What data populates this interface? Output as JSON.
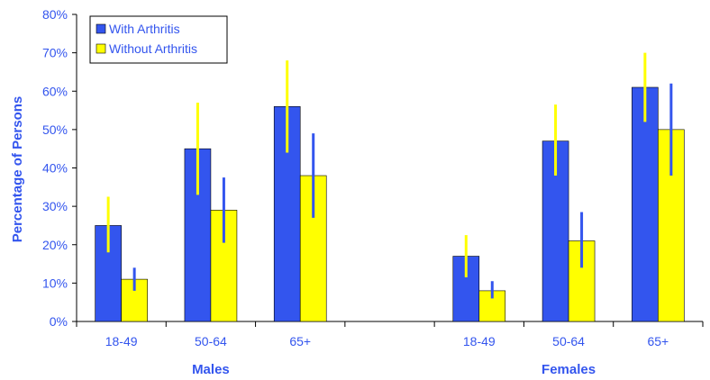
{
  "chart_data": {
    "type": "bar",
    "title": "",
    "ylabel": "Percentage of Persons",
    "ylim": [
      0,
      80
    ],
    "yticks": [
      "0%",
      "10%",
      "20%",
      "30%",
      "40%",
      "50%",
      "60%",
      "70%",
      "80%"
    ],
    "grid": false,
    "legend_position": "top-left",
    "groups": [
      {
        "label": "Males",
        "categories": [
          "18-49",
          "50-64",
          "65+"
        ]
      },
      {
        "label": "Females",
        "categories": [
          "18-49",
          "50-64",
          "65+"
        ]
      }
    ],
    "series": [
      {
        "name": "With Arthritis",
        "color": "#3355ee",
        "errorbar_color": "#ffff00",
        "values": [
          25,
          45,
          56,
          17,
          47,
          61
        ],
        "error_low": [
          18,
          33,
          44,
          11.5,
          38,
          52
        ],
        "error_high": [
          32.5,
          57,
          68,
          22.5,
          56.5,
          70
        ]
      },
      {
        "name": "Without Arthritis",
        "color": "#ffff00",
        "errorbar_color": "#3355ee",
        "values": [
          11,
          29,
          38,
          8,
          21,
          50
        ],
        "error_low": [
          8,
          20.5,
          27,
          6,
          14,
          38
        ],
        "error_high": [
          14,
          37.5,
          49,
          10.5,
          28.5,
          62
        ]
      }
    ]
  }
}
